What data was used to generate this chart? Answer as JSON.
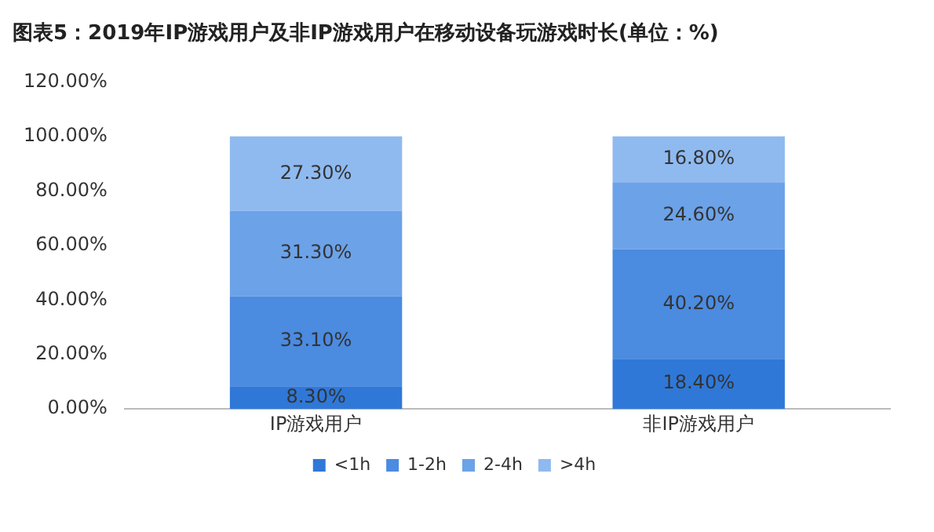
{
  "chart_data": {
    "type": "bar",
    "title": "图表5：2019年IP游戏用户及非IP游戏用户在移动设备玩游戏时长(单位：%)",
    "categories": [
      "IP游戏用户",
      "非IP游戏用户"
    ],
    "stacked": true,
    "ylim": [
      0,
      120
    ],
    "yticks": [
      {
        "value": 0,
        "label": "0.00%"
      },
      {
        "value": 20,
        "label": "20.00%"
      },
      {
        "value": 40,
        "label": "40.00%"
      },
      {
        "value": 60,
        "label": "60.00%"
      },
      {
        "value": 80,
        "label": "80.00%"
      },
      {
        "value": 100,
        "label": "100.00%"
      },
      {
        "value": 120,
        "label": "120.00%"
      }
    ],
    "grid": false,
    "legend": "bottom",
    "series": [
      {
        "name": "<1h",
        "color": "#2f78d8",
        "values": [
          8.3,
          18.4
        ],
        "value_labels": [
          "8.30%",
          "18.40%"
        ]
      },
      {
        "name": "1-2h",
        "color": "#4b8be0",
        "values": [
          33.1,
          40.2
        ],
        "value_labels": [
          "33.10%",
          "40.20%"
        ]
      },
      {
        "name": "2-4h",
        "color": "#6ca2e8",
        "values": [
          31.3,
          24.6
        ],
        "value_labels": [
          "31.30%",
          "24.60%"
        ]
      },
      {
        "name": ">4h",
        "color": "#8fbaf0",
        "values": [
          27.3,
          16.8
        ],
        "value_labels": [
          "27.30%",
          "16.80%"
        ]
      }
    ]
  }
}
